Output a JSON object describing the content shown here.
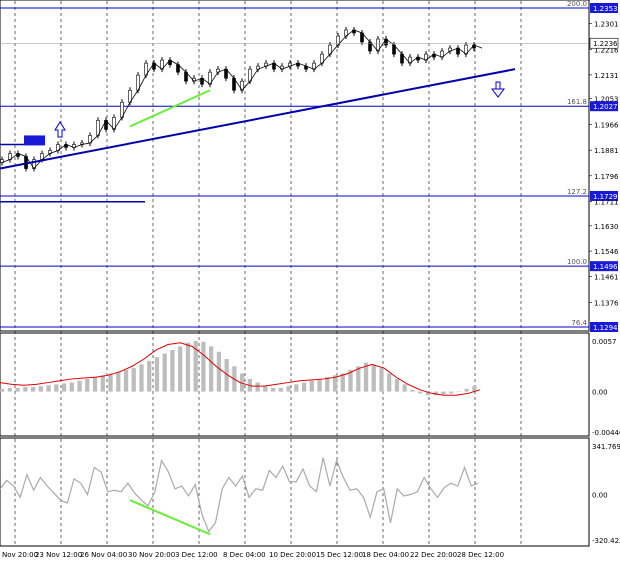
{
  "chart_data": [
    {
      "type": "candlestick",
      "panel": "price",
      "x_tick_labels": [
        "Nov 20:00",
        "23 Nov 12:00",
        "26 Nov 04:00",
        "30 Nov 20:00",
        "3 Dec 12:00",
        "8 Dec 04:00",
        "10 Dec 20:00",
        "15 Dec 12:00",
        "18 Dec 04:00",
        "22 Dec 20:00",
        "28 Dec 12:00"
      ],
      "y_tick_labels": [
        "1.2301",
        "1.2216",
        "1.2131",
        "1.2053",
        "1.1966",
        "1.1881",
        "1.1796",
        "1.1711",
        "1.1630",
        "1.1546",
        "1.1461",
        "1.1376"
      ],
      "ylim": [
        1.1294,
        1.2353
      ],
      "current_price": "1.2236",
      "fib_levels": [
        {
          "label": "200.0",
          "price": "1.2353",
          "value": 1.2353
        },
        {
          "label": "161.8",
          "price": "1.2027",
          "value": 1.2027
        },
        {
          "label": "127.2",
          "price": "1.1729",
          "value": 1.1729
        },
        {
          "label": "100.0",
          "price": "1.1496",
          "value": 1.1496
        },
        {
          "label": "76.4",
          "price": "1.1294",
          "value": 1.1294
        }
      ],
      "close_path": [
        [
          0,
          1.184
        ],
        [
          4,
          1.185
        ],
        [
          8,
          1.187
        ],
        [
          12,
          1.186
        ],
        [
          16,
          1.182
        ],
        [
          20,
          1.185
        ],
        [
          24,
          1.187
        ],
        [
          28,
          1.188
        ],
        [
          32,
          1.19
        ],
        [
          36,
          1.189
        ],
        [
          40,
          1.19
        ],
        [
          44,
          1.1905
        ],
        [
          48,
          1.193
        ],
        [
          52,
          1.198
        ],
        [
          56,
          1.195
        ],
        [
          60,
          1.199
        ],
        [
          64,
          1.204
        ],
        [
          68,
          1.208
        ],
        [
          72,
          1.213
        ],
        [
          76,
          1.217
        ],
        [
          80,
          1.215
        ],
        [
          84,
          1.218
        ],
        [
          88,
          1.2165
        ],
        [
          92,
          1.214
        ],
        [
          96,
          1.211
        ],
        [
          100,
          1.212
        ],
        [
          104,
          1.21
        ],
        [
          108,
          1.214
        ],
        [
          112,
          1.215
        ],
        [
          116,
          1.212
        ],
        [
          120,
          1.208
        ],
        [
          124,
          1.211
        ],
        [
          128,
          1.215
        ],
        [
          132,
          1.216
        ],
        [
          136,
          1.217
        ],
        [
          140,
          1.215
        ],
        [
          144,
          1.216
        ],
        [
          148,
          1.217
        ],
        [
          152,
          1.216
        ],
        [
          156,
          1.215
        ],
        [
          160,
          1.217
        ],
        [
          164,
          1.22
        ],
        [
          168,
          1.223
        ],
        [
          172,
          1.226
        ],
        [
          176,
          1.228
        ],
        [
          180,
          1.227
        ],
        [
          184,
          1.224
        ],
        [
          188,
          1.221
        ],
        [
          192,
          1.225
        ],
        [
          196,
          1.223
        ],
        [
          200,
          1.22
        ],
        [
          204,
          1.217
        ],
        [
          208,
          1.219
        ],
        [
          212,
          1.218
        ],
        [
          216,
          1.22
        ],
        [
          220,
          1.219
        ],
        [
          224,
          1.221
        ],
        [
          228,
          1.222
        ],
        [
          232,
          1.22
        ],
        [
          236,
          1.223
        ],
        [
          240,
          1.222
        ]
      ]
    },
    {
      "type": "histogram",
      "panel": "macd",
      "y_tick_labels": [
        "0.0057",
        "0.00",
        "-0.00446"
      ],
      "ylim": [
        -0.00446,
        0.0057
      ],
      "histogram": [
        0.0003,
        0.0004,
        0.0004,
        0.0005,
        0.0005,
        0.0006,
        0.0007,
        0.0008,
        0.0009,
        0.001,
        0.0012,
        0.0014,
        0.0016,
        0.0018,
        0.002,
        0.0022,
        0.0024,
        0.0026,
        0.003,
        0.0034,
        0.0038,
        0.0042,
        0.0046,
        0.005,
        0.0054,
        0.0056,
        0.0055,
        0.005,
        0.0044,
        0.0036,
        0.0028,
        0.002,
        0.0014,
        0.001,
        0.0006,
        0.0004,
        0.0004,
        0.0006,
        0.0008,
        0.001,
        0.0012,
        0.0014,
        0.0016,
        0.0018,
        0.002,
        0.0024,
        0.0028,
        0.0032,
        0.003,
        0.0026,
        0.002,
        0.0014,
        0.0008,
        0.0002,
        -0.0002,
        -0.0004,
        -0.0004,
        -0.0003,
        -0.0002,
        0.0,
        0.0003,
        0.0006
      ],
      "signal": [
        0.001,
        0.0008,
        0.0007,
        0.0008,
        0.001,
        0.0012,
        0.0014,
        0.0015,
        0.0016,
        0.0018,
        0.0022,
        0.0028,
        0.0036,
        0.0046,
        0.0052,
        0.0054,
        0.005,
        0.004,
        0.0028,
        0.0018,
        0.001,
        0.0006,
        0.0006,
        0.0008,
        0.001,
        0.0012,
        0.0013,
        0.0014,
        0.0016,
        0.002,
        0.0026,
        0.003,
        0.0026,
        0.0016,
        0.0008,
        0.0002,
        -0.0002,
        -0.0004,
        -0.0004,
        -0.0002,
        0.0002
      ]
    },
    {
      "type": "line",
      "panel": "cci",
      "y_tick_labels": [
        "341.7693",
        "0.00",
        "-320.422"
      ],
      "ylim": [
        -320.422,
        341.7693
      ],
      "values": [
        40,
        100,
        60,
        -20,
        140,
        30,
        120,
        60,
        10,
        -40,
        -60,
        110,
        80,
        0,
        190,
        160,
        20,
        30,
        20,
        80,
        10,
        -40,
        -80,
        20,
        240,
        160,
        40,
        60,
        -10,
        70,
        -140,
        -260,
        -200,
        40,
        120,
        60,
        130,
        -20,
        40,
        30,
        170,
        120,
        200,
        90,
        90,
        180,
        60,
        20,
        260,
        60,
        240,
        120,
        30,
        40,
        -20,
        -160,
        20,
        40,
        -200,
        40,
        -10,
        0,
        20,
        120,
        40,
        -20,
        50,
        80,
        60,
        190,
        60,
        80
      ]
    }
  ]
}
